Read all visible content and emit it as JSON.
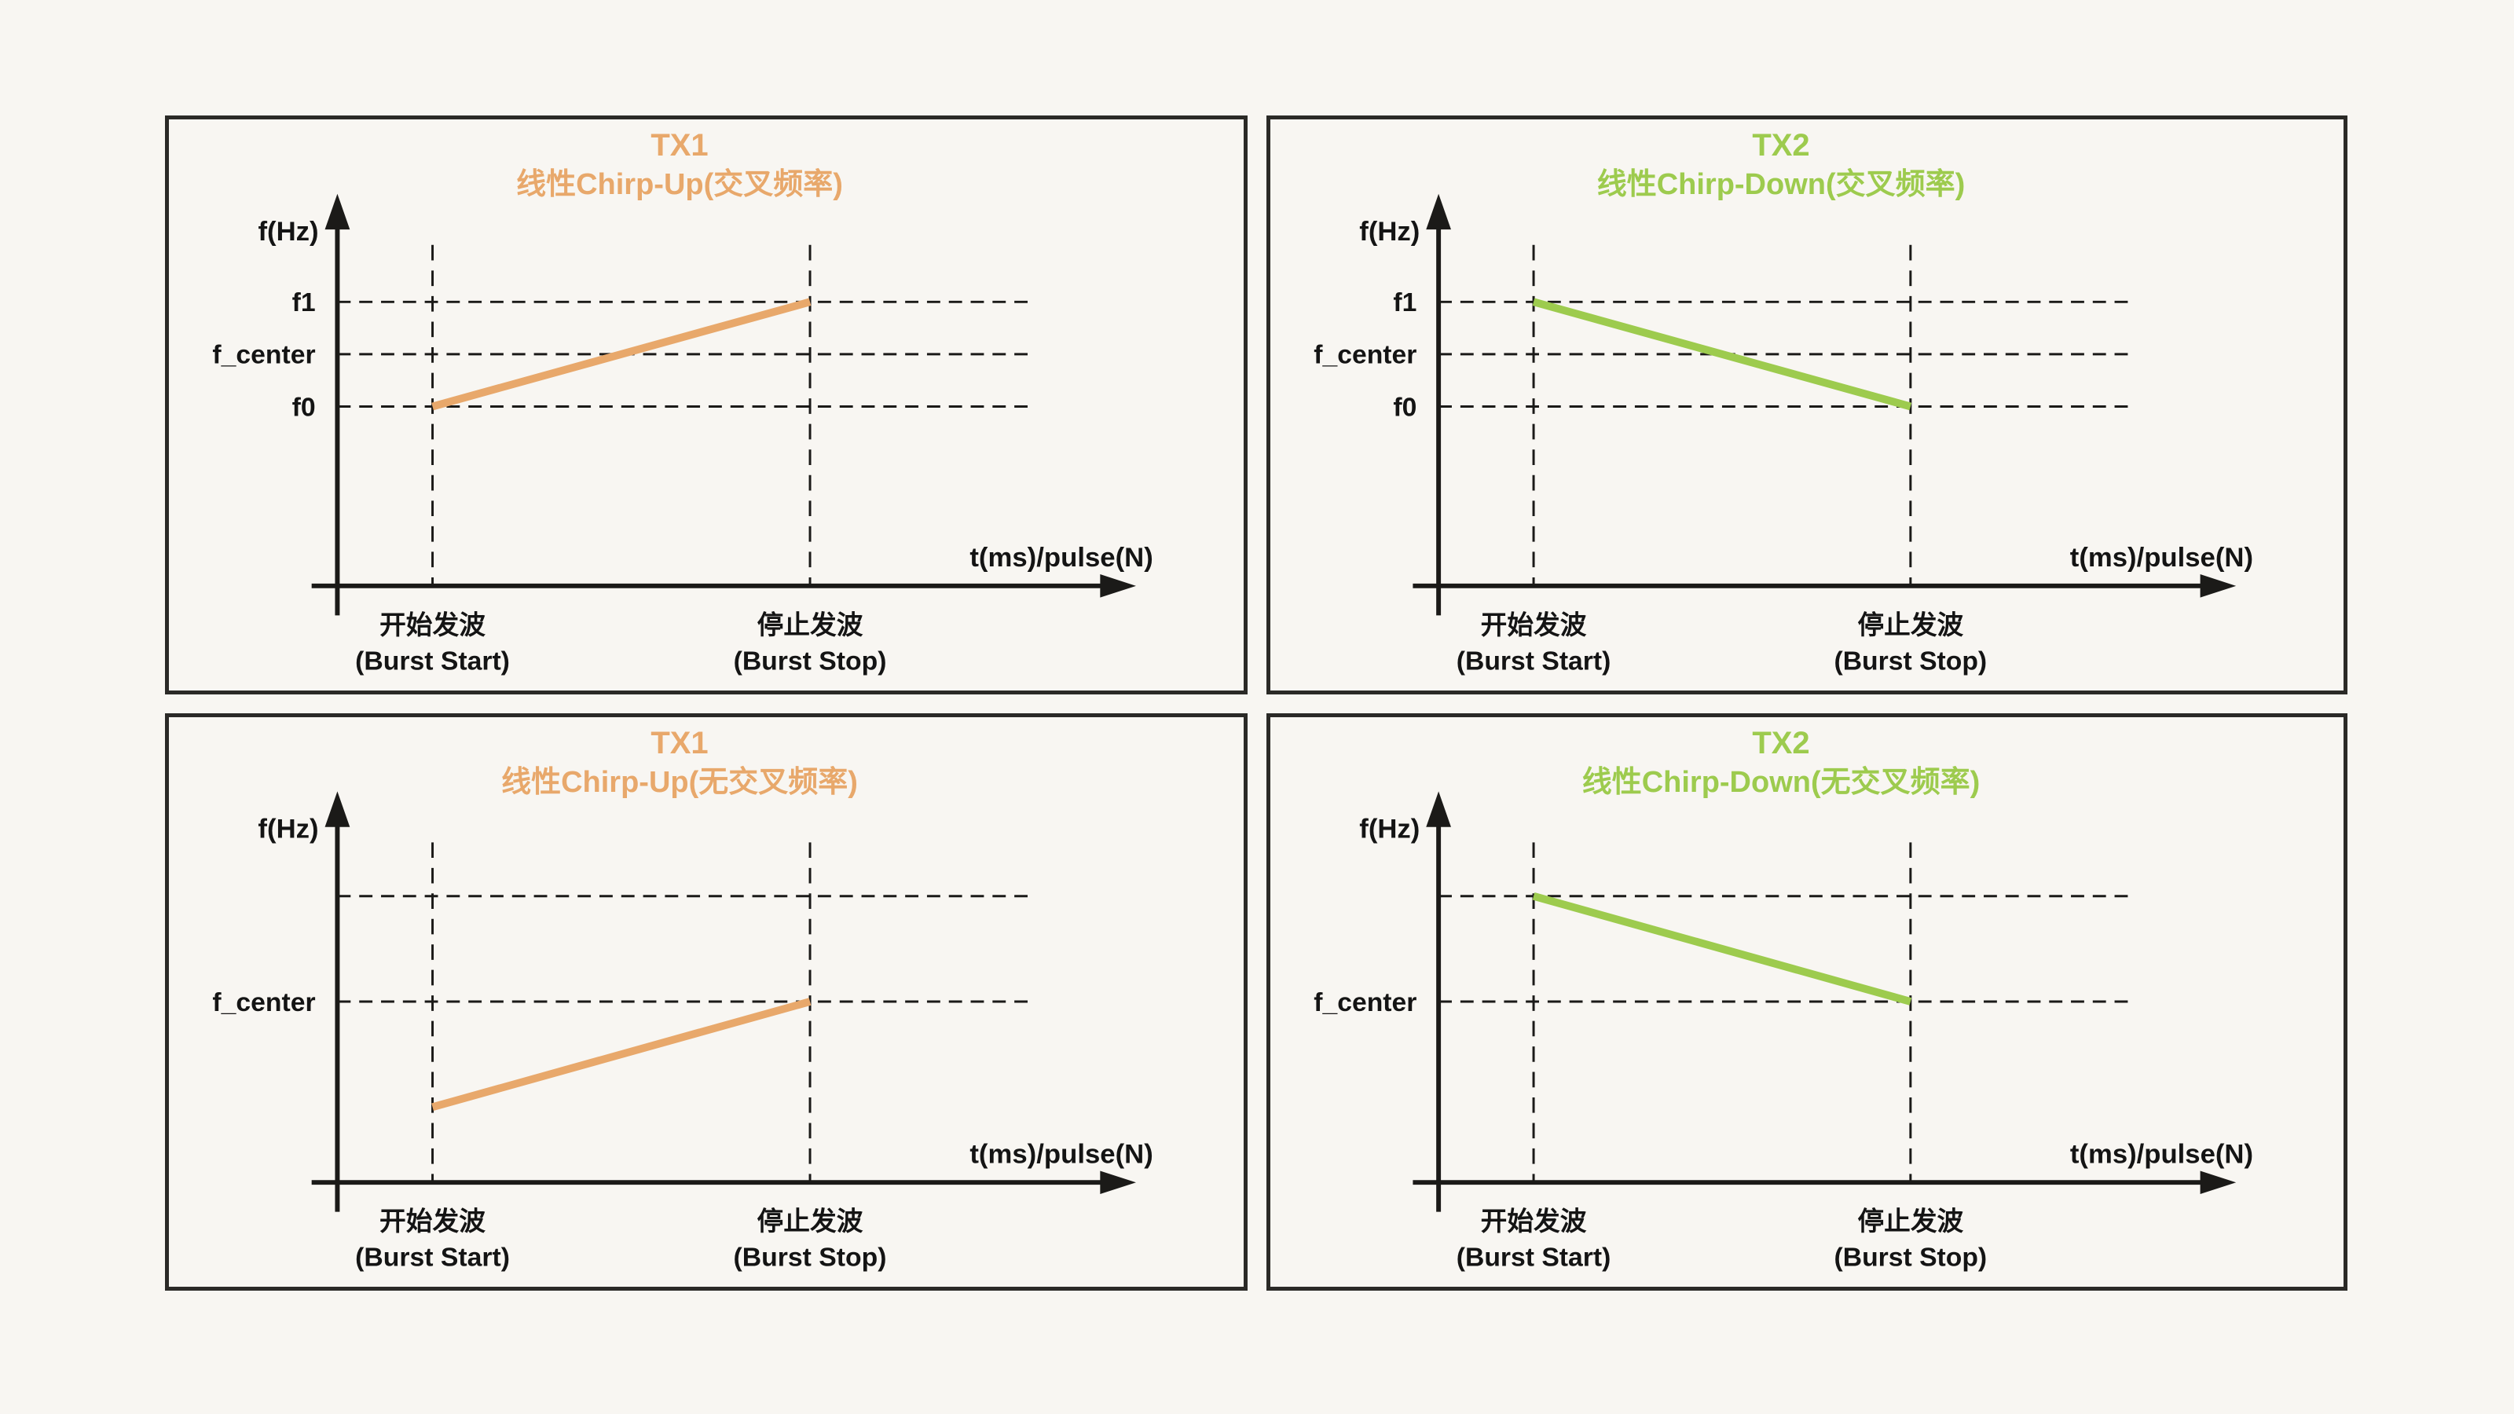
{
  "colors": {
    "background": "#F8F6F2",
    "panel_border": "#2B2A27",
    "axis": "#1B1A18",
    "text": "#141414",
    "tx1_orange": "#E8A86B",
    "tx2_green": "#9DCB4E"
  },
  "chart_data": [
    {
      "type": "line",
      "position": "top-left",
      "variant": "crossed",
      "title": "TX1",
      "subtitle": "线性Chirp-Up(交叉频率)",
      "direction": "up",
      "accent_color": "#E8A86B",
      "ylabel": "f(Hz)",
      "xlabel": "t(ms)/pulse(N)",
      "y_gridlines": [
        {
          "label": "f1",
          "level": 1
        },
        {
          "label": "f_center",
          "level": 0
        },
        {
          "label": "f0",
          "level": -1
        }
      ],
      "x_marks": [
        {
          "label_cn": "开始发波",
          "label_en": "(Burst Start)",
          "position": "burst_start"
        },
        {
          "label_cn": "停止发波",
          "label_en": "(Burst Stop)",
          "position": "burst_stop"
        }
      ],
      "chirp_line": {
        "x_from": "burst_start",
        "level_from": -1,
        "x_to": "burst_stop",
        "level_to": 1
      }
    },
    {
      "type": "line",
      "position": "top-right",
      "variant": "crossed",
      "title": "TX2",
      "subtitle": "线性Chirp-Down(交叉频率)",
      "direction": "down",
      "accent_color": "#9DCB4E",
      "ylabel": "f(Hz)",
      "xlabel": "t(ms)/pulse(N)",
      "y_gridlines": [
        {
          "label": "f1",
          "level": 1
        },
        {
          "label": "f_center",
          "level": 0
        },
        {
          "label": "f0",
          "level": -1
        }
      ],
      "x_marks": [
        {
          "label_cn": "开始发波",
          "label_en": "(Burst Start)",
          "position": "burst_start"
        },
        {
          "label_cn": "停止发波",
          "label_en": "(Burst Stop)",
          "position": "burst_stop"
        }
      ],
      "chirp_line": {
        "x_from": "burst_start",
        "level_from": 1,
        "x_to": "burst_stop",
        "level_to": -1
      }
    },
    {
      "type": "line",
      "position": "bottom-left",
      "variant": "uncrossed",
      "title": "TX1",
      "subtitle": "线性Chirp-Up(无交叉频率)",
      "direction": "up",
      "accent_color": "#E8A86B",
      "ylabel": "f(Hz)",
      "xlabel": "t(ms)/pulse(N)",
      "y_gridlines": [
        {
          "label": "",
          "level": 1
        },
        {
          "label": "f_center",
          "level": 0
        }
      ],
      "x_marks": [
        {
          "label_cn": "开始发波",
          "label_en": "(Burst Start)",
          "position": "burst_start"
        },
        {
          "label_cn": "停止发波",
          "label_en": "(Burst Stop)",
          "position": "burst_stop"
        }
      ],
      "chirp_line": {
        "x_from": "burst_start",
        "level_from": -1,
        "x_to": "burst_stop",
        "level_to": 0
      }
    },
    {
      "type": "line",
      "position": "bottom-right",
      "variant": "uncrossed",
      "title": "TX2",
      "subtitle": "线性Chirp-Down(无交叉频率)",
      "direction": "down",
      "accent_color": "#9DCB4E",
      "ylabel": "f(Hz)",
      "xlabel": "t(ms)/pulse(N)",
      "y_gridlines": [
        {
          "label": "",
          "level": 1
        },
        {
          "label": "f_center",
          "level": 0
        }
      ],
      "x_marks": [
        {
          "label_cn": "开始发波",
          "label_en": "(Burst Start)",
          "position": "burst_start"
        },
        {
          "label_cn": "停止发波",
          "label_en": "(Burst Stop)",
          "position": "burst_stop"
        }
      ],
      "chirp_line": {
        "x_from": "burst_start",
        "level_from": 1,
        "x_to": "burst_stop",
        "level_to": 0
      }
    }
  ]
}
